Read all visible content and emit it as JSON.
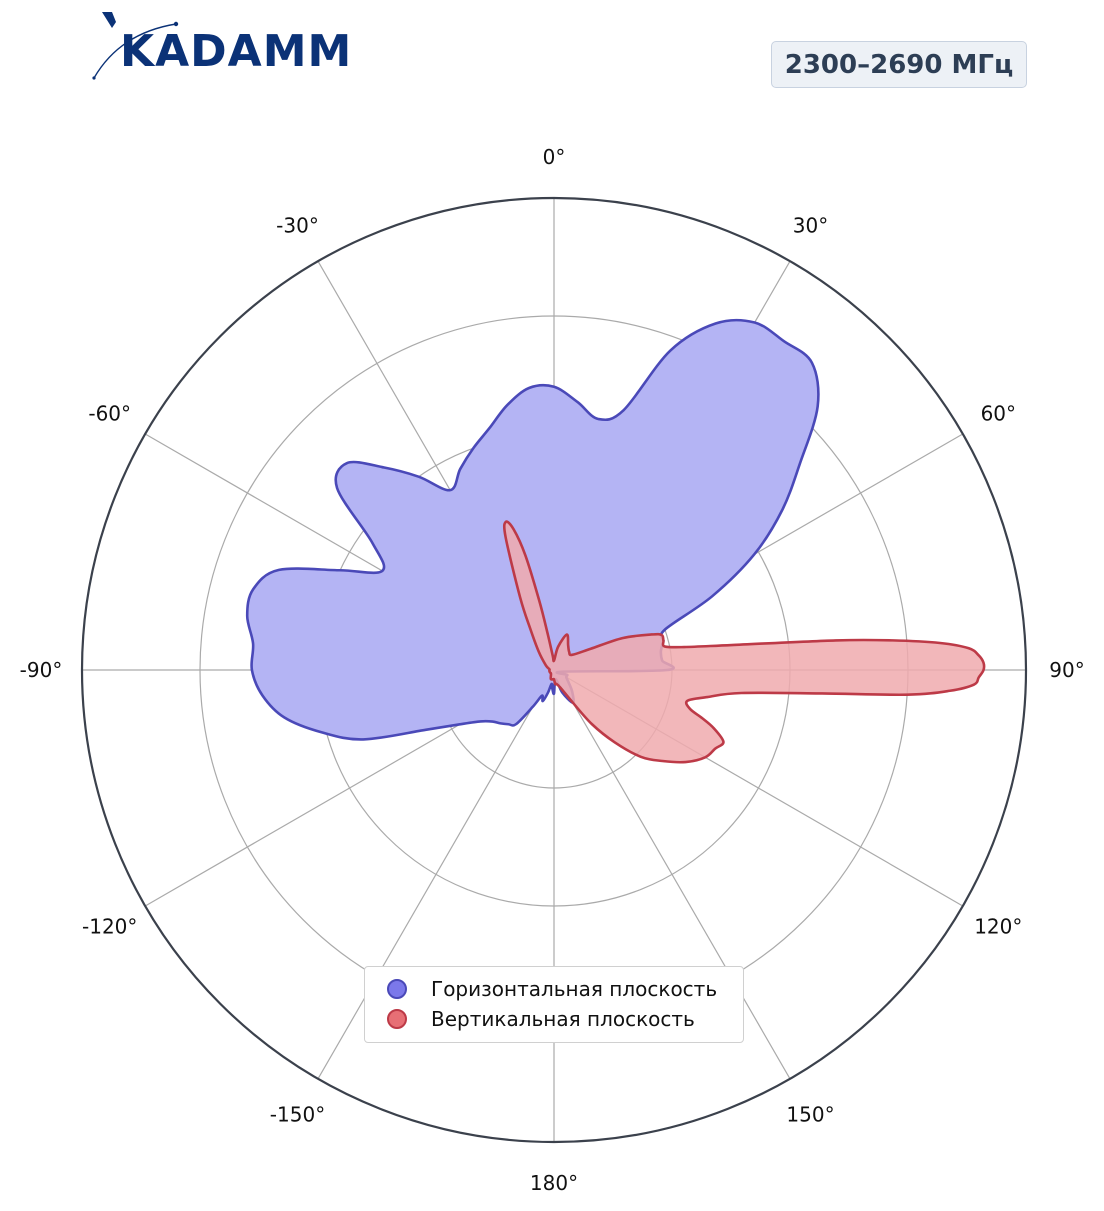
{
  "header": {
    "logo_text": "KADAMM",
    "frequency_badge": "2300–2690 МГц"
  },
  "colors": {
    "horizontal_fill": "#b4b4f4",
    "horizontal_line": "#4a49b8",
    "vertical_fill": "#f0aaae",
    "vertical_line": "#bd3a47",
    "axis": "#3b414c",
    "grid": "#aaaaaa",
    "logo": "#0b3277"
  },
  "chart_data": {
    "type": "polar-area",
    "theta_direction": "clockwise",
    "theta_zero": "top",
    "angle_tick_labels": [
      "0°",
      "30°",
      "60°",
      "90°",
      "120°",
      "150°",
      "180°",
      "-150°",
      "-120°",
      "-90°",
      "-60°",
      "-30°"
    ],
    "angle_tick_values": [
      0,
      30,
      60,
      90,
      120,
      150,
      180,
      210,
      240,
      270,
      300,
      330
    ],
    "rlim": [
      0,
      1
    ],
    "radial_gridlines": [
      0.25,
      0.5,
      0.75,
      1.0
    ],
    "radial_tick_labels_shown": false,
    "legend_placement": "bottom-center",
    "series": [
      {
        "name": "Горизонтальная плоскость",
        "theta_deg": [
          0,
          5,
          10,
          15,
          20,
          25,
          30,
          35,
          40,
          45,
          50,
          55,
          60,
          65,
          70,
          75,
          80,
          85,
          90,
          100,
          110,
          120,
          130,
          140,
          150,
          160,
          170,
          180,
          185,
          190,
          195,
          200,
          205,
          210,
          215,
          220,
          225,
          230,
          235,
          240,
          245,
          250,
          255,
          260,
          265,
          270,
          275,
          280,
          285,
          290,
          295,
          300,
          305,
          310,
          315,
          320,
          325,
          330,
          335,
          340,
          345,
          350,
          355
        ],
        "r": [
          0.6,
          0.57,
          0.54,
          0.57,
          0.72,
          0.81,
          0.85,
          0.85,
          0.85,
          0.79,
          0.68,
          0.59,
          0.49,
          0.37,
          0.25,
          0.24,
          0.23,
          0.23,
          0.24,
          0.02,
          0.03,
          0.03,
          0.04,
          0.06,
          0.08,
          0.05,
          0.02,
          0.05,
          0.04,
          0.03,
          0.05,
          0.07,
          0.06,
          0.09,
          0.14,
          0.15,
          0.16,
          0.17,
          0.19,
          0.23,
          0.3,
          0.43,
          0.51,
          0.58,
          0.62,
          0.64,
          0.64,
          0.66,
          0.66,
          0.62,
          0.5,
          0.42,
          0.47,
          0.6,
          0.62,
          0.56,
          0.5,
          0.44,
          0.47,
          0.5,
          0.53,
          0.57,
          0.6
        ]
      },
      {
        "name": "Вертикальная плоскость",
        "theta_deg": [
          0,
          10,
          20,
          30,
          40,
          50,
          60,
          65,
          70,
          72,
          75,
          78,
          80,
          82,
          84,
          85,
          86,
          87,
          88,
          89,
          90,
          91,
          92,
          93,
          94,
          95,
          97,
          100,
          103,
          106,
          108,
          110,
          113,
          116,
          120,
          125,
          130,
          135,
          140,
          145,
          150,
          160,
          170,
          175,
          180,
          185,
          190,
          200,
          220,
          240,
          260,
          280,
          300,
          320,
          330,
          335,
          340,
          342,
          344,
          346,
          348,
          350,
          355
        ],
        "r": [
          0.02,
          0.05,
          0.08,
          0.06,
          0.05,
          0.05,
          0.09,
          0.16,
          0.22,
          0.24,
          0.24,
          0.24,
          0.28,
          0.38,
          0.6,
          0.72,
          0.82,
          0.88,
          0.9,
          0.91,
          0.91,
          0.9,
          0.89,
          0.84,
          0.75,
          0.57,
          0.4,
          0.33,
          0.29,
          0.3,
          0.33,
          0.36,
          0.39,
          0.38,
          0.37,
          0.34,
          0.3,
          0.26,
          0.2,
          0.14,
          0.08,
          0.04,
          0.03,
          0.03,
          0.02,
          0.02,
          0.02,
          0.02,
          0.01,
          0.01,
          0.01,
          0.01,
          0.02,
          0.05,
          0.1,
          0.17,
          0.3,
          0.33,
          0.31,
          0.25,
          0.15,
          0.08,
          0.03
        ]
      }
    ]
  }
}
